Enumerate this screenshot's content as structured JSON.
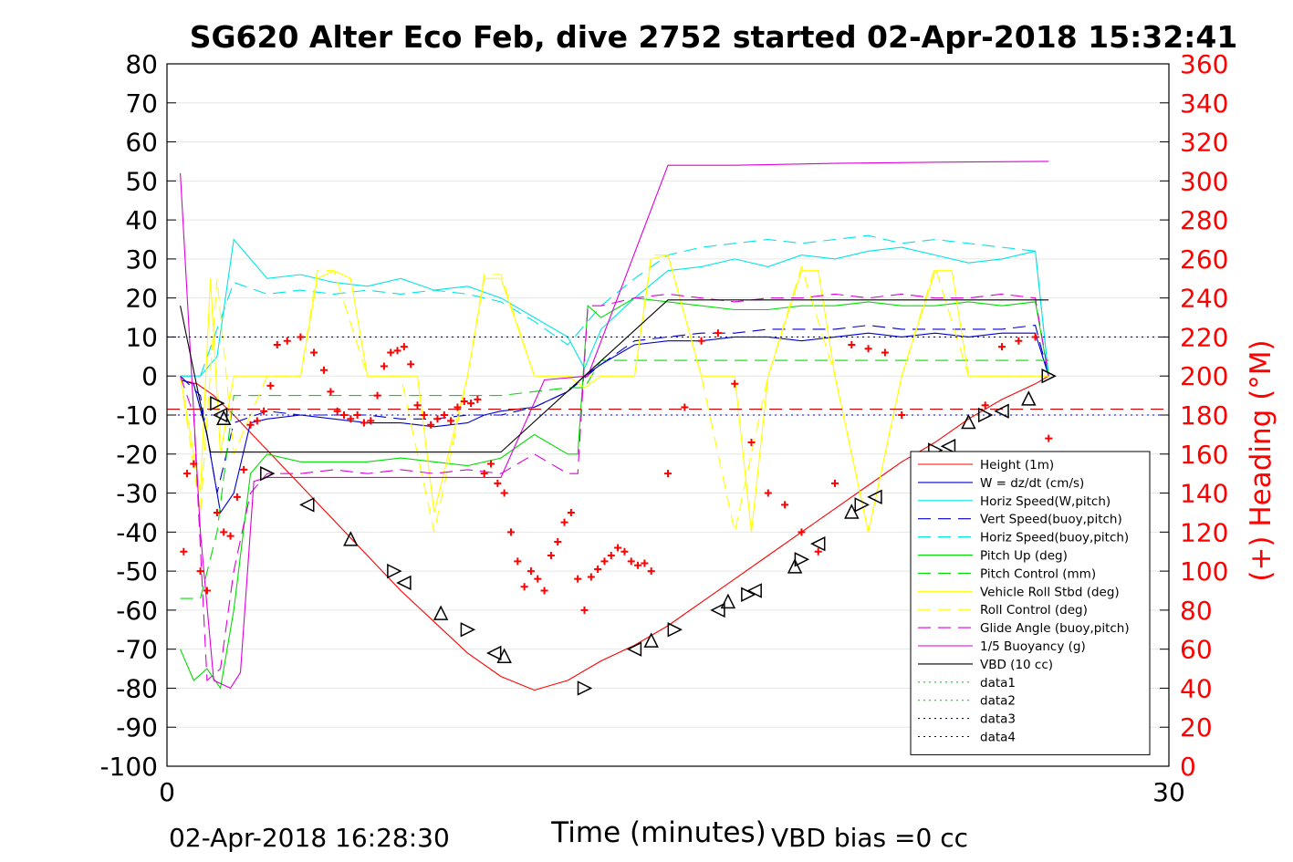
{
  "chart_data": {
    "type": "line",
    "title": "SG620 Alter Eco Feb, dive 2752 started 02-Apr-2018 15:32:41",
    "xlabel": "Time (minutes)",
    "ylabel": "",
    "y2label": "(+) Heading (°M)",
    "xlim": [
      0,
      30
    ],
    "ylim": [
      -100,
      80
    ],
    "y2lim": [
      0,
      360
    ],
    "xticks": [
      0,
      30
    ],
    "yticks": [
      80,
      70,
      60,
      50,
      40,
      30,
      20,
      10,
      0,
      -10,
      -20,
      -30,
      -40,
      -50,
      -60,
      -70,
      -80,
      -90,
      -100
    ],
    "y2ticks": [
      360,
      340,
      320,
      300,
      280,
      260,
      240,
      220,
      200,
      180,
      160,
      140,
      120,
      100,
      80,
      60,
      40,
      20,
      0
    ],
    "grid": true,
    "legend_position": "lower-right",
    "footer_left": "02-Apr-2018 16:28:30",
    "footer_right": "VBD bias =0 cc",
    "colors": {
      "axis": "#000000",
      "heading": "#ff0000",
      "grid": "#e6e6e6"
    },
    "series": [
      {
        "name": "Height (1m)",
        "color": "#ff0000",
        "dash": "solid",
        "x": [
          0.4,
          0.9,
          1.4,
          2.0,
          3.0,
          4.0,
          5.0,
          6.0,
          7.0,
          8.0,
          9.0,
          10.0,
          11.0,
          12.0,
          13.0,
          14.0,
          15.0,
          16.0,
          17.0,
          18.0,
          19.0,
          20.0,
          21.0,
          22.0,
          23.0,
          24.0,
          25.0,
          26.0,
          26.4
        ],
        "y": [
          -1,
          -2,
          -5,
          -10,
          -19,
          -28,
          -37,
          -46,
          -55,
          -63,
          -71,
          -77,
          -80.5,
          -78,
          -73,
          -69,
          -64,
          -58,
          -52,
          -46,
          -40,
          -34,
          -28,
          -22,
          -17,
          -11,
          -6,
          -2,
          0
        ]
      },
      {
        "name": "W = dz/dt (cm/s)",
        "color": "#0000cc",
        "dash": "solid",
        "x": [
          0.4,
          0.8,
          1.2,
          1.6,
          2.0,
          2.5,
          3.0,
          4.0,
          5.0,
          6.0,
          7.0,
          8.0,
          9.0,
          9.5,
          10.0,
          11.0,
          12.0,
          12.5,
          13.0,
          14.0,
          15.0,
          16.0,
          17.0,
          18.0,
          19.0,
          20.0,
          21.0,
          22.0,
          23.0,
          24.0,
          25.0,
          26.0,
          26.4
        ],
        "y": [
          -1,
          -2,
          -15,
          -35,
          -30,
          -12,
          -11,
          -10,
          -11,
          -12,
          -12,
          -13,
          -12,
          -10,
          -9,
          -8,
          -4,
          0,
          3,
          8,
          9,
          9,
          10,
          10,
          9,
          10,
          11,
          10,
          11,
          10,
          11,
          11,
          0
        ]
      },
      {
        "name": "Horiz Speed(W,pitch)",
        "color": "#00e5e5",
        "dash": "solid",
        "x": [
          0.4,
          1.0,
          1.5,
          2.0,
          2.5,
          3.0,
          4.0,
          5.0,
          6.0,
          7.0,
          8.0,
          9.0,
          10.0,
          11.0,
          12.0,
          12.5,
          13.0,
          14.0,
          15.0,
          16.0,
          17.0,
          18.0,
          19.0,
          20.0,
          21.0,
          22.0,
          23.0,
          24.0,
          25.0,
          26.0,
          26.4
        ],
        "y": [
          0,
          0,
          5,
          35,
          30,
          25,
          26,
          24,
          23,
          25,
          22,
          23,
          20,
          15,
          10,
          2,
          12,
          20,
          27,
          28,
          30,
          28,
          31,
          30,
          32,
          33,
          31,
          29,
          30,
          32,
          0
        ]
      },
      {
        "name": "Vert Speed(buoy,pitch)",
        "color": "#0000cc",
        "dash": "dash",
        "x": [
          0.4,
          1.0,
          1.5,
          2.0,
          3.0,
          4.0,
          5.0,
          6.0,
          7.0,
          8.0,
          9.0,
          10.0,
          11.0,
          12.0,
          13.0,
          14.0,
          15.0,
          16.0,
          17.0,
          18.0,
          19.0,
          20.0,
          21.0,
          22.0,
          23.0,
          24.0,
          25.0,
          26.0,
          26.4
        ],
        "y": [
          0,
          -5,
          -30,
          -12,
          -9,
          -10,
          -10,
          -10,
          -11,
          -11,
          -10,
          -10,
          -8,
          -4,
          3,
          9,
          10,
          11,
          11,
          12,
          12,
          12,
          13,
          12,
          12,
          12,
          12,
          13,
          0
        ]
      },
      {
        "name": "Horiz Speed(buoy,pitch)",
        "color": "#00e5e5",
        "dash": "dash",
        "x": [
          0.4,
          1.0,
          2.0,
          3.0,
          4.0,
          5.0,
          6.0,
          7.0,
          8.0,
          9.0,
          10.0,
          11.0,
          12.0,
          13.0,
          14.0,
          15.0,
          16.0,
          17.0,
          18.0,
          19.0,
          20.0,
          21.0,
          22.0,
          23.0,
          24.0,
          25.0,
          26.0,
          26.4
        ],
        "y": [
          0,
          0,
          24,
          21,
          22,
          21,
          22,
          21,
          22,
          21,
          19,
          14,
          8,
          18,
          25,
          31,
          33,
          34,
          35,
          34,
          35,
          36,
          34,
          35,
          34,
          33,
          32,
          0
        ]
      },
      {
        "name": "Pitch Up (deg)",
        "color": "#00dd00",
        "dash": "solid",
        "x": [
          0.4,
          0.8,
          1.2,
          1.6,
          2.0,
          2.5,
          3.0,
          4.0,
          5.0,
          6.0,
          7.0,
          8.0,
          9.0,
          10.0,
          11.0,
          12.0,
          12.3,
          12.6,
          13.0,
          14.0,
          15.0,
          16.0,
          17.0,
          18.0,
          19.0,
          20.0,
          21.0,
          22.0,
          23.0,
          24.0,
          25.0,
          26.0,
          26.4
        ],
        "y": [
          -70,
          -78,
          -75,
          -80,
          -60,
          -25,
          -20,
          -22,
          -22,
          -22,
          -21,
          -22,
          -23,
          -21,
          -15,
          -20,
          -20,
          18,
          15,
          20,
          19,
          18,
          17,
          17,
          18,
          18,
          19,
          18,
          18,
          19,
          18,
          19,
          0
        ]
      },
      {
        "name": "Pitch Control (mm)",
        "color": "#00dd00",
        "dash": "dash",
        "x": [
          0.4,
          1.0,
          1.5,
          2.0,
          3.0,
          5.0,
          7.0,
          9.0,
          10.0,
          11.0,
          12.0,
          12.5,
          13.0,
          15.0,
          17.0,
          19.0,
          21.0,
          23.0,
          25.0,
          26.4
        ],
        "y": [
          -57,
          -57,
          -40,
          -5,
          -5,
          -5,
          -5,
          -5,
          -5,
          -4,
          -3,
          -3,
          4,
          4,
          4,
          4,
          4,
          4,
          4,
          4
        ]
      },
      {
        "name": "Vehicle Roll Stbd (deg)",
        "color": "#ffff00",
        "dash": "solid",
        "x": [
          0.4,
          1.0,
          1.3,
          1.6,
          2.0,
          3.0,
          4.0,
          4.5,
          5.0,
          5.5,
          6.0,
          7.0,
          7.5,
          8.0,
          9.0,
          9.5,
          10.0,
          11.0,
          12.0,
          12.5,
          13.0,
          14.0,
          14.5,
          15.0,
          16.0,
          17.0,
          17.5,
          18.0,
          19.0,
          19.5,
          20.0,
          21.0,
          22.0,
          23.0,
          23.5,
          24.0,
          25.0,
          26.0,
          26.4
        ],
        "y": [
          0,
          -30,
          25,
          -20,
          0,
          0,
          0,
          25,
          27,
          25,
          0,
          0,
          0,
          -35,
          0,
          25,
          25,
          0,
          0,
          -3,
          0,
          0,
          30,
          31,
          0,
          0,
          -40,
          0,
          27,
          27,
          0,
          -40,
          0,
          27,
          27,
          0,
          0,
          0,
          0
        ]
      },
      {
        "name": "Roll Control (deg)",
        "color": "#ffff00",
        "dash": "dash",
        "x": [
          0.4,
          1.0,
          1.5,
          2.0,
          3.0,
          4.0,
          4.5,
          5.0,
          6.0,
          7.0,
          8.0,
          9.0,
          9.5,
          10.0,
          11.0,
          12.0,
          13.0,
          14.0,
          14.5,
          15.0,
          16.0,
          17.0,
          18.0,
          19.0,
          20.0,
          21.0,
          22.0,
          23.0,
          24.0,
          25.0,
          26.4
        ],
        "y": [
          0,
          -35,
          25,
          -20,
          0,
          0,
          27,
          27,
          0,
          0,
          -40,
          0,
          26,
          26,
          0,
          0,
          0,
          0,
          31,
          31,
          0,
          -40,
          0,
          28,
          0,
          -40,
          0,
          28,
          0,
          0,
          0
        ]
      },
      {
        "name": "Glide Angle (buoy,pitch)",
        "color": "#dd00dd",
        "dash": "dash",
        "x": [
          0.4,
          0.8,
          1.2,
          1.6,
          2.0,
          2.5,
          3.0,
          4.0,
          5.0,
          6.0,
          7.0,
          8.0,
          9.0,
          10.0,
          11.0,
          12.0,
          12.3,
          12.6,
          13.0,
          14.0,
          15.0,
          16.0,
          17.0,
          18.0,
          19.0,
          20.0,
          21.0,
          22.0,
          23.0,
          24.0,
          25.0,
          26.0,
          26.4
        ],
        "y": [
          0,
          -10,
          -78,
          -75,
          -50,
          -30,
          -25,
          -25,
          -24,
          -25,
          -24,
          -25,
          -24,
          -25,
          -20,
          -25,
          -25,
          18,
          18,
          20,
          21,
          20,
          19,
          20,
          20,
          21,
          20,
          21,
          20,
          20,
          21,
          20,
          0
        ]
      },
      {
        "name": "1/5 Buoyancy (g)",
        "color": "#dd00dd",
        "dash": "solid",
        "x": [
          0.4,
          1.0,
          1.4,
          1.9,
          2.2,
          2.6,
          3.0,
          5.0,
          7.0,
          9.0,
          10.0,
          11.3,
          12.6,
          15.0,
          17.0,
          20.0,
          23.0,
          26.4
        ],
        "y": [
          52,
          -40,
          -78,
          -80,
          -76,
          -27,
          -26,
          -26,
          -26,
          -26,
          -26,
          -1,
          0,
          54,
          54,
          54.5,
          54.8,
          55
        ]
      },
      {
        "name": "VBD (10 cc)",
        "color": "#000000",
        "dash": "solid",
        "x": [
          0.4,
          1.3,
          5.0,
          8.0,
          10.0,
          12.5,
          15.0,
          18.0,
          22.0,
          26.4
        ],
        "y": [
          18,
          -19.5,
          -19.5,
          -19.5,
          -19.5,
          0,
          19.5,
          19.5,
          19.5,
          19.5
        ]
      },
      {
        "name": "data1",
        "color": "#00dd00",
        "dash": "dot",
        "x": [],
        "y": []
      },
      {
        "name": "data2",
        "color": "#00dd00",
        "dash": "dot",
        "x": [],
        "y": []
      },
      {
        "name": "data3",
        "color": "#0000cc",
        "dash": "dot",
        "x": [
          0,
          30
        ],
        "y": [
          10,
          10
        ]
      },
      {
        "name": "data4",
        "color": "#0000cc",
        "dash": "dot",
        "x": [
          0,
          30
        ],
        "y": [
          -10,
          -10
        ]
      }
    ],
    "reference_lines": [
      {
        "color": "#cc0000",
        "dash": "dash",
        "y": -8.5
      }
    ],
    "heading_points": {
      "x": [
        0.5,
        0.6,
        0.8,
        1.0,
        1.2,
        1.5,
        1.7,
        1.9,
        2.1,
        2.3,
        2.5,
        2.7,
        2.9,
        3.1,
        3.3,
        3.6,
        4.0,
        4.4,
        4.7,
        4.9,
        5.1,
        5.3,
        5.5,
        5.7,
        5.9,
        6.1,
        6.3,
        6.5,
        6.7,
        6.9,
        7.1,
        7.3,
        7.5,
        7.7,
        7.9,
        8.1,
        8.3,
        8.5,
        8.7,
        8.9,
        9.1,
        9.3,
        9.5,
        9.7,
        9.9,
        10.1,
        10.3,
        10.5,
        10.7,
        10.9,
        11.1,
        11.3,
        11.5,
        11.7,
        11.9,
        12.1,
        12.3,
        12.5,
        12.7,
        12.9,
        13.1,
        13.3,
        13.5,
        13.7,
        13.9,
        14.1,
        14.3,
        14.5,
        15.0,
        15.5,
        16.0,
        16.5,
        17.0,
        17.5,
        18.0,
        18.5,
        19.0,
        19.5,
        20.0,
        20.5,
        21.0,
        21.5,
        22.0,
        22.5,
        23.0,
        23.5,
        24.0,
        24.5,
        25.0,
        25.5,
        26.0,
        26.4
      ],
      "y": [
        110,
        150,
        155,
        100,
        90,
        130,
        120,
        118,
        138,
        152,
        175,
        177,
        182,
        195,
        216,
        218,
        220,
        212,
        203,
        192,
        182,
        180,
        178,
        180,
        176,
        177,
        190,
        205,
        212,
        213,
        215,
        206,
        185,
        180,
        175,
        178,
        180,
        177,
        184,
        187,
        186,
        188,
        150,
        155,
        145,
        140,
        120,
        105,
        92,
        100,
        96,
        90,
        108,
        115,
        125,
        130,
        96,
        80,
        97,
        101,
        105,
        108,
        112,
        110,
        105,
        103,
        104,
        100,
        150,
        184,
        218,
        222,
        196,
        166,
        140,
        134,
        120,
        110,
        145,
        216,
        214,
        212,
        180,
        138,
        125,
        112,
        105,
        185,
        215,
        218,
        220,
        168
      ]
    },
    "triangle_markers": {
      "x": [
        1.5,
        1.6,
        1.7,
        3.0,
        4.2,
        5.5,
        6.8,
        7.1,
        8.2,
        9.0,
        9.8,
        10.1,
        12.5,
        14.0,
        14.5,
        15.2,
        16.5,
        16.8,
        17.4,
        17.6,
        18.8,
        19.0,
        19.5,
        20.5,
        20.8,
        21.2,
        22.5,
        23.0,
        23.4,
        24.0,
        24.5,
        25.0,
        25.8,
        26.4
      ],
      "y": [
        -7,
        -10,
        -11,
        -25,
        -33,
        -42,
        -50,
        -53,
        -61,
        -65,
        -71,
        -72,
        -80,
        -70,
        -68,
        -65,
        -60,
        -58,
        -56,
        -55,
        -49,
        -47,
        -43,
        -35,
        -33,
        -31,
        -24,
        -19,
        -18,
        -12,
        -10,
        -9,
        -6,
        0
      ]
    }
  }
}
